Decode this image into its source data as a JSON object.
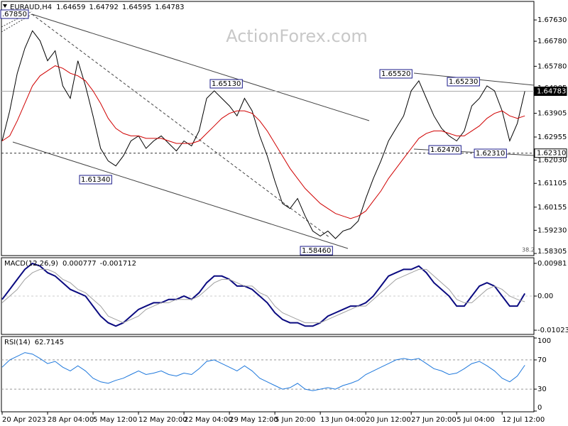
{
  "chart_data": [
    {
      "type": "line",
      "title": "EURAUD,H4",
      "ohlc": [
        1.64659,
        1.64792,
        1.64595,
        1.64783
      ],
      "watermark": "ActionForex.com",
      "ylim": [
        1.5822,
        1.6837
      ],
      "yticks": [
        {
          "value": 1.6763,
          "label": "1.67630"
        },
        {
          "value": 1.6678,
          "label": "1.66780"
        },
        {
          "value": 1.6578,
          "label": "1.65780"
        },
        {
          "value": 1.64905,
          "label": "1.64905"
        },
        {
          "value": 1.63905,
          "label": "1.63905"
        },
        {
          "value": 1.62955,
          "label": "1.62955"
        },
        {
          "value": 1.6203,
          "label": "1.62030"
        },
        {
          "value": 1.61105,
          "label": "1.61105"
        },
        {
          "value": 1.60155,
          "label": "1.60155"
        },
        {
          "value": 1.5923,
          "label": "1.59230"
        },
        {
          "value": 1.58305,
          "label": "1.58305"
        }
      ],
      "series": [
        {
          "color": "#000000",
          "values": [
            1.628,
            1.64,
            1.655,
            1.665,
            1.672,
            1.668,
            1.66,
            1.664,
            1.65,
            1.645,
            1.66,
            1.65,
            1.638,
            1.625,
            1.62,
            1.618,
            1.622,
            1.628,
            1.63,
            1.625,
            1.628,
            1.63,
            1.627,
            1.624,
            1.628,
            1.626,
            1.632,
            1.645,
            1.648,
            1.645,
            1.642,
            1.638,
            1.645,
            1.64,
            1.63,
            1.622,
            1.612,
            1.603,
            1.601,
            1.605,
            1.598,
            1.592,
            1.59,
            1.592,
            1.589,
            1.592,
            1.593,
            1.596,
            1.605,
            1.613,
            1.62,
            1.628,
            1.633,
            1.638,
            1.648,
            1.652,
            1.645,
            1.638,
            1.633,
            1.63,
            1.628,
            1.632,
            1.642,
            1.645,
            1.65,
            1.648,
            1.64,
            1.628,
            1.635,
            1.64783
          ]
        },
        {
          "color": "#d00000",
          "values": [
            1.628,
            1.63,
            1.636,
            1.643,
            1.65,
            1.654,
            1.656,
            1.658,
            1.657,
            1.655,
            1.654,
            1.652,
            1.648,
            1.643,
            1.637,
            1.633,
            1.631,
            1.63,
            1.63,
            1.629,
            1.629,
            1.629,
            1.628,
            1.627,
            1.627,
            1.627,
            1.628,
            1.631,
            1.634,
            1.637,
            1.639,
            1.64,
            1.64,
            1.639,
            1.636,
            1.632,
            1.627,
            1.622,
            1.617,
            1.613,
            1.609,
            1.606,
            1.603,
            1.601,
            1.599,
            1.598,
            1.597,
            1.598,
            1.6,
            1.604,
            1.608,
            1.613,
            1.617,
            1.621,
            1.625,
            1.629,
            1.631,
            1.632,
            1.632,
            1.631,
            1.63,
            1.63,
            1.632,
            1.634,
            1.637,
            1.639,
            1.64,
            1.638,
            1.637,
            1.638
          ]
        }
      ],
      "annotations": [
        ".67850",
        "1.65130",
        "1.61340",
        "1.58460",
        "1.65520",
        "1.65230",
        "1.62470",
        "1.62310",
        "38.2"
      ],
      "price_tags": [
        {
          "value": 1.64783,
          "label": "1.64783"
        },
        {
          "value": 1.6231,
          "label": "1.62310"
        }
      ]
    },
    {
      "type": "line",
      "title": "MACD(12,26,9)",
      "ylim": [
        -0.0115,
        0.0115
      ],
      "yticks": [
        0.00981,
        {
          "value": 0,
          "label": "0.00"
        },
        -0.010235
      ],
      "series": [
        {
          "color": "#0a0a80",
          "values": [
            -0.001,
            0.002,
            0.005,
            0.008,
            0.0098,
            0.009,
            0.007,
            0.006,
            0.004,
            0.002,
            0.001,
            0,
            -0.003,
            -0.006,
            -0.008,
            -0.009,
            -0.008,
            -0.006,
            -0.004,
            -0.003,
            -0.002,
            -0.002,
            -0.001,
            -0.001,
            0,
            -0.001,
            0.001,
            0.004,
            0.006,
            0.006,
            0.005,
            0.003,
            0.003,
            0.002,
            0,
            -0.002,
            -0.005,
            -0.007,
            -0.008,
            -0.008,
            -0.009,
            -0.009,
            -0.008,
            -0.006,
            -0.005,
            -0.004,
            -0.003,
            -0.003,
            -0.002,
            0,
            0.003,
            0.006,
            0.007,
            0.008,
            0.008,
            0.009,
            0.007,
            0.004,
            0.002,
            0,
            -0.003,
            -0.003,
            0,
            0.003,
            0.004,
            0.003,
            0,
            -0.003,
            -0.003,
            0.000777
          ]
        },
        {
          "color": "#a0a0a0",
          "values": [
            -0.002,
            0,
            0.002,
            0.005,
            0.007,
            0.008,
            0.008,
            0.007,
            0.005,
            0.004,
            0.002,
            0.001,
            -0.001,
            -0.003,
            -0.006,
            -0.007,
            -0.008,
            -0.007,
            -0.006,
            -0.004,
            -0.003,
            -0.002,
            -0.002,
            -0.001,
            -0.001,
            -0.001,
            0,
            0.002,
            0.004,
            0.005,
            0.005,
            0.004,
            0.003,
            0.003,
            0.001,
            0,
            -0.003,
            -0.005,
            -0.006,
            -0.007,
            -0.008,
            -0.008,
            -0.008,
            -0.007,
            -0.006,
            -0.005,
            -0.004,
            -0.003,
            -0.003,
            -0.001,
            0.001,
            0.003,
            0.005,
            0.006,
            0.007,
            0.008,
            0.008,
            0.006,
            0.004,
            0.002,
            -0.001,
            -0.002,
            -0.002,
            0,
            0.002,
            0.003,
            0.002,
            0,
            -0.001,
            -0.001712
          ]
        }
      ]
    },
    {
      "type": "line",
      "title": "RSI(14)",
      "ylim": [
        -1,
        102
      ],
      "yticks": [
        100,
        70,
        30,
        0
      ],
      "categories": [
        "20 Apr 2023",
        null,
        null,
        null,
        null,
        null,
        "28 Apr 04:00",
        null,
        null,
        null,
        null,
        null,
        "5 May 12:00",
        null,
        null,
        null,
        null,
        null,
        "12 May 20:00",
        null,
        null,
        null,
        null,
        null,
        "22 May 04:00",
        null,
        null,
        null,
        null,
        null,
        "29 May 12:00",
        null,
        null,
        null,
        null,
        null,
        "5 Jun 20:00",
        null,
        null,
        null,
        null,
        null,
        "13 Jun 04:00",
        null,
        null,
        null,
        null,
        null,
        "20 Jun 12:00",
        null,
        null,
        null,
        null,
        null,
        "27 Jun 20:00",
        null,
        null,
        null,
        null,
        null,
        "5 Jul 04:00",
        null,
        null,
        null,
        null,
        null,
        "12 Jul 12:00",
        null,
        null,
        null
      ],
      "series": [
        {
          "color": "#1e78dc",
          "values": [
            60,
            70,
            75,
            80,
            78,
            72,
            65,
            68,
            60,
            55,
            62,
            55,
            45,
            40,
            38,
            42,
            45,
            50,
            55,
            50,
            52,
            55,
            50,
            48,
            52,
            50,
            58,
            68,
            70,
            65,
            60,
            55,
            62,
            55,
            45,
            40,
            35,
            30,
            32,
            38,
            30,
            28,
            30,
            32,
            30,
            35,
            38,
            42,
            50,
            55,
            60,
            65,
            70,
            72,
            70,
            72,
            65,
            58,
            55,
            50,
            52,
            58,
            65,
            68,
            62,
            55,
            45,
            40,
            48,
            62.7145
          ]
        }
      ]
    }
  ]
}
